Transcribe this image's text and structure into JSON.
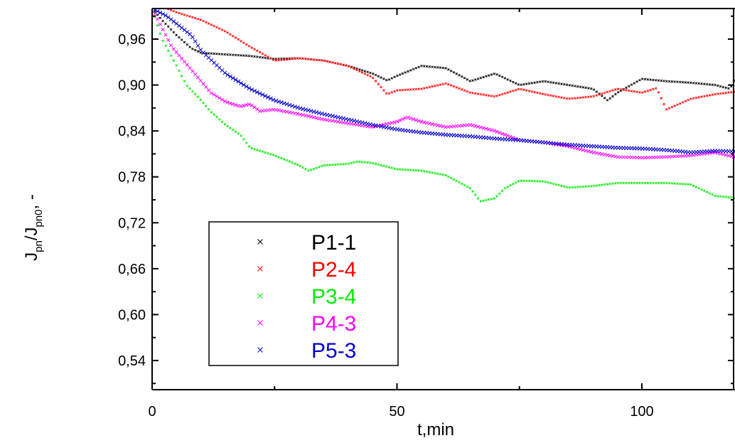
{
  "chart_data": {
    "type": "scatter",
    "xlabel": "t,min",
    "ylabel": {
      "main": "J",
      "sub1": "pn",
      "sep": "/J",
      "sub2": "pn0",
      "suffix": ", -"
    },
    "xlim": [
      0,
      120
    ],
    "ylim": [
      0.5,
      1.0
    ],
    "x_ticks": [
      {
        "value": 0,
        "label": "0"
      },
      {
        "value": 50,
        "label": "50"
      },
      {
        "value": 100,
        "label": "100"
      }
    ],
    "y_ticks": [
      {
        "value": 0.54,
        "label": "0,54"
      },
      {
        "value": 0.6,
        "label": "0,60"
      },
      {
        "value": 0.66,
        "label": "0,66"
      },
      {
        "value": 0.72,
        "label": "0,72"
      },
      {
        "value": 0.78,
        "label": "0,78"
      },
      {
        "value": 0.84,
        "label": "0,84"
      },
      {
        "value": 0.9,
        "label": "0,90"
      },
      {
        "value": 0.96,
        "label": "0,96"
      }
    ],
    "grid": false,
    "legend_position": "bottom-left",
    "series": [
      {
        "name": "P1-1",
        "color": "#000000",
        "x": [
          0,
          2,
          5,
          8,
          10,
          15,
          20,
          25,
          30,
          35,
          40,
          45,
          48,
          50,
          55,
          60,
          65,
          70,
          75,
          80,
          85,
          90,
          93,
          95,
          100,
          105,
          110,
          115,
          118,
          120
        ],
        "y": [
          1.0,
          0.985,
          0.965,
          0.948,
          0.942,
          0.94,
          0.938,
          0.934,
          0.935,
          0.932,
          0.925,
          0.915,
          0.906,
          0.912,
          0.925,
          0.922,
          0.905,
          0.915,
          0.9,
          0.905,
          0.9,
          0.895,
          0.88,
          0.89,
          0.908,
          0.905,
          0.903,
          0.9,
          0.895,
          0.922
        ]
      },
      {
        "name": "P2-4",
        "color": "#ff0000",
        "x": [
          0,
          3,
          5,
          10,
          15,
          20,
          25,
          30,
          35,
          40,
          45,
          48,
          50,
          55,
          60,
          65,
          70,
          75,
          80,
          85,
          90,
          95,
          100,
          103,
          105,
          110,
          115,
          120
        ],
        "y": [
          1.0,
          1.0,
          0.995,
          0.985,
          0.97,
          0.95,
          0.932,
          0.935,
          0.932,
          0.925,
          0.91,
          0.888,
          0.893,
          0.895,
          0.902,
          0.89,
          0.885,
          0.895,
          0.888,
          0.882,
          0.885,
          0.895,
          0.89,
          0.896,
          0.868,
          0.882,
          0.888,
          0.892
        ]
      },
      {
        "name": "P3-4",
        "color": "#00ee00",
        "x": [
          0,
          2,
          5,
          7,
          10,
          12,
          15,
          18,
          20,
          25,
          30,
          32,
          35,
          40,
          42,
          45,
          50,
          55,
          60,
          65,
          67,
          70,
          72,
          75,
          80,
          85,
          90,
          95,
          100,
          105,
          110,
          115,
          120
        ],
        "y": [
          1.0,
          0.96,
          0.925,
          0.9,
          0.88,
          0.865,
          0.848,
          0.835,
          0.818,
          0.808,
          0.795,
          0.788,
          0.795,
          0.797,
          0.8,
          0.798,
          0.79,
          0.788,
          0.782,
          0.765,
          0.748,
          0.752,
          0.765,
          0.775,
          0.774,
          0.766,
          0.768,
          0.772,
          0.772,
          0.772,
          0.77,
          0.755,
          0.752
        ]
      },
      {
        "name": "P4-3",
        "color": "#ff00ff",
        "x": [
          0,
          2,
          4,
          6,
          8,
          10,
          12,
          15,
          18,
          20,
          22,
          25,
          30,
          35,
          40,
          45,
          50,
          52,
          55,
          60,
          65,
          70,
          75,
          80,
          85,
          90,
          95,
          100,
          105,
          110,
          115,
          120
        ],
        "y": [
          1.0,
          0.975,
          0.95,
          0.935,
          0.92,
          0.905,
          0.89,
          0.878,
          0.872,
          0.875,
          0.866,
          0.868,
          0.862,
          0.855,
          0.85,
          0.845,
          0.852,
          0.858,
          0.852,
          0.845,
          0.848,
          0.84,
          0.828,
          0.825,
          0.82,
          0.812,
          0.806,
          0.805,
          0.806,
          0.808,
          0.812,
          0.804
        ]
      },
      {
        "name": "P5-3",
        "color": "#0000cc",
        "x": [
          0,
          3,
          6,
          8,
          10,
          15,
          20,
          25,
          30,
          35,
          40,
          45,
          50,
          55,
          60,
          65,
          70,
          75,
          80,
          85,
          90,
          95,
          100,
          105,
          110,
          115,
          120
        ],
        "y": [
          1.0,
          0.99,
          0.975,
          0.965,
          0.945,
          0.915,
          0.895,
          0.88,
          0.87,
          0.862,
          0.855,
          0.848,
          0.842,
          0.838,
          0.835,
          0.833,
          0.83,
          0.828,
          0.825,
          0.822,
          0.82,
          0.818,
          0.817,
          0.815,
          0.812,
          0.814,
          0.813
        ]
      }
    ]
  }
}
